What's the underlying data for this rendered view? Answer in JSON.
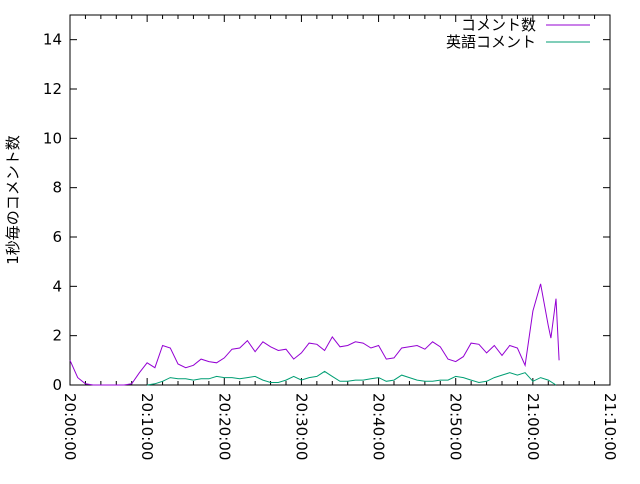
{
  "chart_data": {
    "type": "line",
    "title": "",
    "xlabel": "",
    "ylabel": "1秒毎のコメント数",
    "xlim": [
      "20:00:00",
      "21:10:00"
    ],
    "ylim": [
      0,
      15
    ],
    "x_tick_labels": [
      "20:00:00",
      "20:10:00",
      "20:20:00",
      "20:30:00",
      "20:40:00",
      "20:50:00",
      "21:00:00",
      "21:10:00"
    ],
    "y_tick_labels": [
      "0",
      "2",
      "4",
      "6",
      "8",
      "10",
      "12",
      "14"
    ],
    "grid": false,
    "legend_position": "top-right",
    "series": [
      {
        "name": "コメント数",
        "color": "#9400d3",
        "x": [
          "20:00:00",
          "20:01:00",
          "20:02:00",
          "20:03:00",
          "20:04:00",
          "20:05:00",
          "20:06:00",
          "20:07:00",
          "20:08:00",
          "20:09:00",
          "20:10:00",
          "20:11:00",
          "20:12:00",
          "20:13:00",
          "20:14:00",
          "20:15:00",
          "20:16:00",
          "20:17:00",
          "20:18:00",
          "20:19:00",
          "20:20:00",
          "20:21:00",
          "20:22:00",
          "20:23:00",
          "20:24:00",
          "20:25:00",
          "20:26:00",
          "20:27:00",
          "20:28:00",
          "20:29:00",
          "20:30:00",
          "20:31:00",
          "20:32:00",
          "20:33:00",
          "20:34:00",
          "20:35:00",
          "20:36:00",
          "20:37:00",
          "20:38:00",
          "20:39:00",
          "20:40:00",
          "20:41:00",
          "20:42:00",
          "20:43:00",
          "20:44:00",
          "20:45:00",
          "20:46:00",
          "20:47:00",
          "20:48:00",
          "20:49:00",
          "20:50:00",
          "20:51:00",
          "20:52:00",
          "20:53:00",
          "20:54:00",
          "20:55:00",
          "20:56:00",
          "20:57:00",
          "20:58:00",
          "20:59:00",
          "21:00:00",
          "21:01:00",
          "21:02:00",
          "21:02:20",
          "21:03:00",
          "21:03:24"
        ],
        "values": [
          1.0,
          0.3,
          0.05,
          0,
          0,
          0,
          0,
          0,
          0.05,
          0.5,
          0.9,
          0.7,
          1.6,
          1.5,
          0.85,
          0.7,
          0.8,
          1.05,
          0.95,
          0.9,
          1.1,
          1.45,
          1.5,
          1.8,
          1.35,
          1.75,
          1.55,
          1.4,
          1.45,
          1.05,
          1.3,
          1.7,
          1.65,
          1.4,
          1.95,
          1.55,
          1.6,
          1.75,
          1.7,
          1.5,
          1.6,
          1.05,
          1.1,
          1.5,
          1.55,
          1.6,
          1.45,
          1.75,
          1.55,
          1.05,
          0.95,
          1.15,
          1.7,
          1.65,
          1.3,
          1.6,
          1.2,
          1.6,
          1.5,
          0.8,
          3.0,
          4.1,
          2.4,
          1.9,
          3.5,
          1.0
        ]
      },
      {
        "name": "英語コメント",
        "color": "#009e73",
        "x": [
          "20:10:00",
          "20:11:00",
          "20:12:00",
          "20:13:00",
          "20:14:00",
          "20:15:00",
          "20:16:00",
          "20:17:00",
          "20:18:00",
          "20:19:00",
          "20:20:00",
          "20:21:00",
          "20:22:00",
          "20:23:00",
          "20:24:00",
          "20:25:00",
          "20:26:00",
          "20:27:00",
          "20:28:00",
          "20:29:00",
          "20:30:00",
          "20:31:00",
          "20:32:00",
          "20:33:00",
          "20:34:00",
          "20:35:00",
          "20:36:00",
          "20:37:00",
          "20:38:00",
          "20:39:00",
          "20:40:00",
          "20:41:00",
          "20:42:00",
          "20:43:00",
          "20:44:00",
          "20:45:00",
          "20:46:00",
          "20:47:00",
          "20:48:00",
          "20:49:00",
          "20:50:00",
          "20:51:00",
          "20:52:00",
          "20:53:00",
          "20:54:00",
          "20:55:00",
          "20:56:00",
          "20:57:00",
          "20:58:00",
          "20:59:00",
          "21:00:00",
          "21:01:00",
          "21:02:00",
          "21:03:00"
        ],
        "values": [
          0,
          0.05,
          0.15,
          0.3,
          0.25,
          0.25,
          0.2,
          0.25,
          0.25,
          0.35,
          0.3,
          0.3,
          0.25,
          0.3,
          0.35,
          0.2,
          0.1,
          0.1,
          0.2,
          0.35,
          0.2,
          0.3,
          0.35,
          0.55,
          0.35,
          0.15,
          0.15,
          0.2,
          0.2,
          0.25,
          0.3,
          0.15,
          0.2,
          0.4,
          0.3,
          0.2,
          0.15,
          0.15,
          0.2,
          0.2,
          0.35,
          0.3,
          0.2,
          0.1,
          0.15,
          0.3,
          0.4,
          0.5,
          0.4,
          0.5,
          0.15,
          0.3,
          0.2,
          0.0
        ]
      }
    ]
  }
}
